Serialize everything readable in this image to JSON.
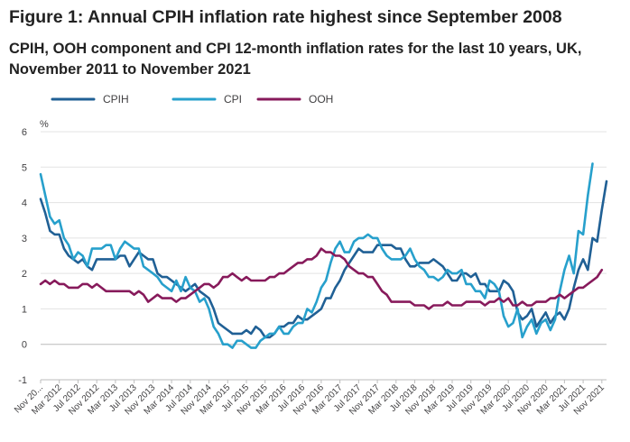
{
  "chart_data": {
    "type": "line",
    "title": "Figure 1: Annual CPIH inflation rate highest since September 2008",
    "subtitle": "CPIH, OOH component and CPI 12-month inflation rates for the last 10 years, UK, November 2011 to November 2021",
    "ylabel": "%",
    "xlabel": "",
    "ylim": [
      -1,
      6
    ],
    "yticks": [
      -1,
      0,
      1,
      2,
      3,
      4,
      5,
      6
    ],
    "x_labels": [
      "Nov 20...",
      "Mar 2012",
      "Jul 2012",
      "Nov 2012",
      "Mar 2013",
      "Jul 2013",
      "Nov 2013",
      "Mar 2014",
      "Jul 2014",
      "Nov 2014",
      "Mar 2015",
      "Jul 2015",
      "Nov 2015",
      "Mar 2016",
      "Jul 2016",
      "Nov 2016",
      "Mar 2017",
      "Jul 2017",
      "Nov 2017",
      "Mar 2018",
      "Jul 2018",
      "Nov 2018",
      "Mar 2019",
      "Jul 2019",
      "Nov 2019",
      "Mar 2020",
      "Jul 2020",
      "Nov 2020",
      "Mar 2021",
      "Jul 2021",
      "Nov 2021"
    ],
    "legend_position": "top-left",
    "colors": {
      "CPIH": "#206095",
      "CPI": "#27a0cc",
      "OOH": "#871a5b"
    },
    "series": [
      {
        "name": "CPIH",
        "values": [
          4.1,
          3.7,
          3.2,
          3.1,
          3.1,
          2.7,
          2.5,
          2.4,
          2.3,
          2.4,
          2.2,
          2.1,
          2.4,
          2.4,
          2.4,
          2.4,
          2.4,
          2.5,
          2.5,
          2.2,
          2.4,
          2.6,
          2.5,
          2.4,
          2.4,
          2.0,
          1.9,
          1.9,
          1.8,
          1.7,
          1.6,
          1.5,
          1.6,
          1.7,
          1.5,
          1.4,
          1.3,
          1.0,
          0.6,
          0.5,
          0.4,
          0.3,
          0.3,
          0.3,
          0.4,
          0.3,
          0.5,
          0.4,
          0.2,
          0.2,
          0.3,
          0.5,
          0.5,
          0.6,
          0.6,
          0.8,
          0.7,
          0.7,
          0.8,
          0.9,
          1.0,
          1.3,
          1.3,
          1.6,
          1.8,
          2.1,
          2.3,
          2.5,
          2.7,
          2.6,
          2.6,
          2.6,
          2.8,
          2.8,
          2.8,
          2.8,
          2.7,
          2.7,
          2.4,
          2.2,
          2.2,
          2.3,
          2.3,
          2.3,
          2.4,
          2.3,
          2.2,
          2.0,
          1.8,
          1.8,
          2.0,
          2.0,
          1.9,
          2.0,
          1.7,
          1.7,
          1.5,
          1.5,
          1.5,
          1.8,
          1.7,
          1.5,
          0.9,
          0.7,
          0.8,
          1.0,
          0.5,
          0.7,
          0.9,
          0.6,
          0.8,
          0.9,
          0.7,
          1.0,
          1.6,
          2.1,
          2.4,
          2.1,
          3.0,
          2.9,
          3.8,
          4.6
        ]
      },
      {
        "name": "CPI",
        "values": [
          4.8,
          4.2,
          3.6,
          3.4,
          3.5,
          3.0,
          2.8,
          2.4,
          2.6,
          2.5,
          2.2,
          2.7,
          2.7,
          2.7,
          2.8,
          2.8,
          2.4,
          2.7,
          2.9,
          2.8,
          2.7,
          2.7,
          2.2,
          2.1,
          2.0,
          1.9,
          1.7,
          1.6,
          1.5,
          1.8,
          1.5,
          1.9,
          1.6,
          1.5,
          1.2,
          1.3,
          1.0,
          0.5,
          0.3,
          0.0,
          0.0,
          -0.1,
          0.1,
          0.1,
          0.0,
          -0.1,
          -0.1,
          0.1,
          0.2,
          0.3,
          0.3,
          0.5,
          0.3,
          0.3,
          0.5,
          0.6,
          0.6,
          1.0,
          0.9,
          1.2,
          1.6,
          1.8,
          2.3,
          2.7,
          2.9,
          2.6,
          2.6,
          2.9,
          3.0,
          3.0,
          3.1,
          3.0,
          3.0,
          2.7,
          2.5,
          2.4,
          2.4,
          2.4,
          2.5,
          2.7,
          2.4,
          2.2,
          2.1,
          1.9,
          1.9,
          1.8,
          1.9,
          2.1,
          2.0,
          2.0,
          2.1,
          1.7,
          1.7,
          1.5,
          1.5,
          1.3,
          1.8,
          1.7,
          1.5,
          0.8,
          0.5,
          0.6,
          1.0,
          0.2,
          0.5,
          0.7,
          0.3,
          0.6,
          0.7,
          0.4,
          0.7,
          1.5,
          2.1,
          2.5,
          2.0,
          3.2,
          3.1,
          4.2,
          5.1
        ]
      },
      {
        "name": "OOH",
        "values": [
          1.7,
          1.8,
          1.7,
          1.8,
          1.7,
          1.7,
          1.6,
          1.6,
          1.6,
          1.7,
          1.7,
          1.6,
          1.7,
          1.6,
          1.5,
          1.5,
          1.5,
          1.5,
          1.5,
          1.5,
          1.4,
          1.5,
          1.4,
          1.2,
          1.3,
          1.4,
          1.3,
          1.3,
          1.3,
          1.2,
          1.3,
          1.3,
          1.4,
          1.5,
          1.6,
          1.7,
          1.7,
          1.6,
          1.7,
          1.9,
          1.9,
          2.0,
          1.9,
          1.8,
          1.9,
          1.8,
          1.8,
          1.8,
          1.8,
          1.9,
          1.9,
          2.0,
          2.0,
          2.1,
          2.2,
          2.3,
          2.3,
          2.4,
          2.4,
          2.5,
          2.7,
          2.6,
          2.6,
          2.5,
          2.5,
          2.4,
          2.2,
          2.1,
          2.0,
          2.0,
          1.9,
          1.9,
          1.7,
          1.5,
          1.4,
          1.2,
          1.2,
          1.2,
          1.2,
          1.2,
          1.1,
          1.1,
          1.1,
          1.0,
          1.1,
          1.1,
          1.1,
          1.2,
          1.1,
          1.1,
          1.1,
          1.2,
          1.2,
          1.2,
          1.2,
          1.1,
          1.2,
          1.2,
          1.3,
          1.2,
          1.3,
          1.1,
          1.1,
          1.2,
          1.1,
          1.1,
          1.2,
          1.2,
          1.2,
          1.3,
          1.3,
          1.4,
          1.3,
          1.4,
          1.5,
          1.6,
          1.6,
          1.7,
          1.8,
          1.9,
          2.1
        ]
      }
    ]
  }
}
